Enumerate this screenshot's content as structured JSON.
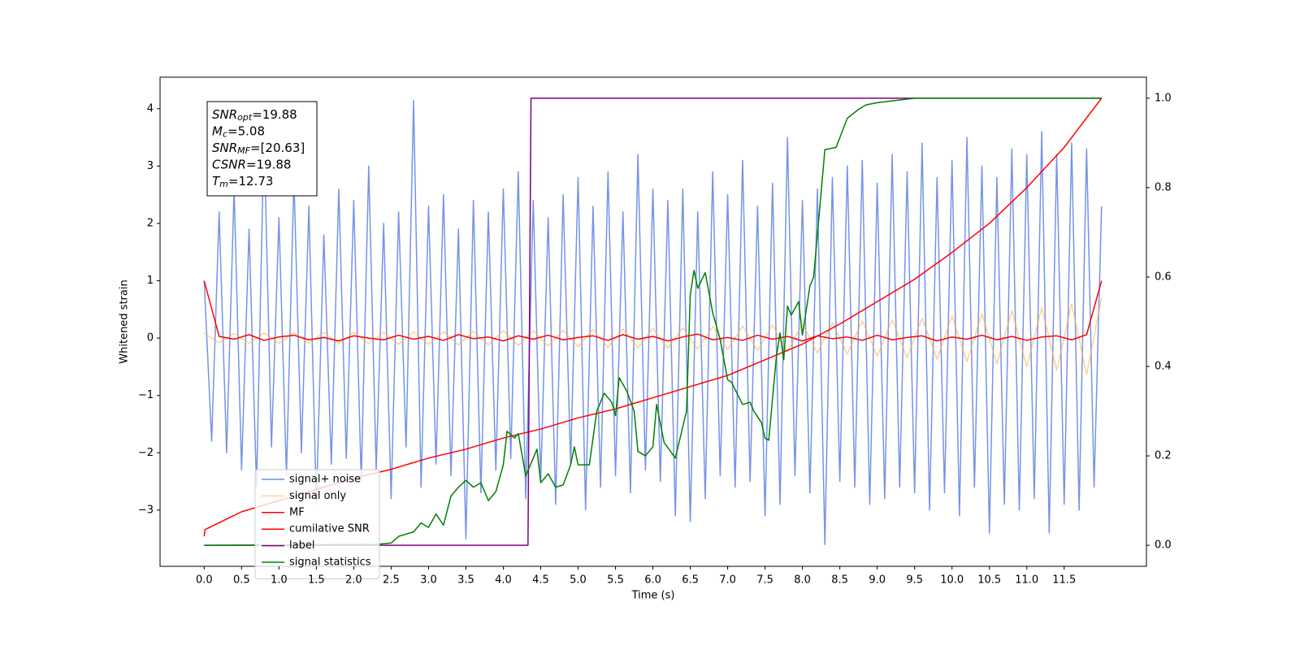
{
  "chart_data": {
    "type": "line",
    "xlabel": "Time (s)",
    "ylabel": "Whitened strain",
    "xlim": [
      -0.59,
      12.6
    ],
    "ylim": [
      -3.98,
      4.55
    ],
    "y2lim": [
      -0.047,
      1.047
    ],
    "xticks": [
      {
        "value": 0,
        "label": "0.0"
      },
      {
        "value": 0.5,
        "label": "0.5"
      },
      {
        "value": 1,
        "label": "1.0"
      },
      {
        "value": 1.5,
        "label": "1.5"
      },
      {
        "value": 2,
        "label": "2.0"
      },
      {
        "value": 2.5,
        "label": "2.5"
      },
      {
        "value": 3,
        "label": "3.0"
      },
      {
        "value": 3.5,
        "label": "3.5"
      },
      {
        "value": 4,
        "label": "4.0"
      },
      {
        "value": 4.5,
        "label": "4.5"
      },
      {
        "value": 5,
        "label": "5.0"
      },
      {
        "value": 5.5,
        "label": "5.5"
      },
      {
        "value": 6,
        "label": "6.0"
      },
      {
        "value": 6.5,
        "label": "6.5"
      },
      {
        "value": 7,
        "label": "7.0"
      },
      {
        "value": 7.5,
        "label": "7.5"
      },
      {
        "value": 8,
        "label": "8.0"
      },
      {
        "value": 8.5,
        "label": "8.5"
      },
      {
        "value": 9,
        "label": "9.0"
      },
      {
        "value": 9.5,
        "label": "9.5"
      },
      {
        "value": 10,
        "label": "10.0"
      },
      {
        "value": 10.5,
        "label": "10.5"
      },
      {
        "value": 11,
        "label": "11.0"
      },
      {
        "value": 11.5,
        "label": "11.5"
      }
    ],
    "yticks": [
      {
        "value": -3,
        "label": "−3"
      },
      {
        "value": -2,
        "label": "−2"
      },
      {
        "value": -1,
        "label": "−1"
      },
      0,
      1,
      2,
      3,
      4
    ],
    "y2ticks": [
      {
        "value": 0,
        "label": "0.0"
      },
      {
        "value": 0.2,
        "label": "0.2"
      },
      {
        "value": 0.4,
        "label": "0.4"
      },
      {
        "value": 0.6,
        "label": "0.6"
      },
      {
        "value": 0.8,
        "label": "0.8"
      },
      {
        "value": 1,
        "label": "1.0"
      }
    ],
    "annotations": [
      {
        "symbol": "SNR",
        "subscript": "opt",
        "text": "=19.88"
      },
      {
        "symbol": "M",
        "subscript": "c",
        "text": "=5.08"
      },
      {
        "symbol": "SNR",
        "subscript": "MF",
        "text": "=[20.63]"
      },
      {
        "symbol": "CSNR",
        "subscript": "",
        "text": "=19.88"
      },
      {
        "symbol": "T",
        "subscript": "m",
        "text": "=12.73"
      }
    ],
    "legend": "lower left",
    "series": [
      {
        "name": "signal+ noise",
        "color": "#6f8de6",
        "x": [
          0,
          0.1,
          0.2,
          0.3,
          0.4,
          0.5,
          0.6,
          0.7,
          0.8,
          0.9,
          1,
          1.1,
          1.2,
          1.3,
          1.4,
          1.5,
          1.6,
          1.7,
          1.8,
          1.9,
          2,
          2.1,
          2.2,
          2.3,
          2.4,
          2.5,
          2.6,
          2.7,
          2.8,
          2.9,
          3,
          3.1,
          3.2,
          3.3,
          3.4,
          3.5,
          3.6,
          3.7,
          3.8,
          3.9,
          4,
          4.1,
          4.2,
          4.3,
          4.4,
          4.5,
          4.6,
          4.7,
          4.8,
          4.9,
          5,
          5.1,
          5.2,
          5.3,
          5.4,
          5.5,
          5.6,
          5.7,
          5.8,
          5.9,
          6,
          6.1,
          6.2,
          6.3,
          6.4,
          6.5,
          6.6,
          6.7,
          6.8,
          6.9,
          7,
          7.1,
          7.2,
          7.3,
          7.4,
          7.5,
          7.6,
          7.7,
          7.8,
          7.9,
          8,
          8.1,
          8.2,
          8.3,
          8.4,
          8.5,
          8.6,
          8.7,
          8.8,
          8.9,
          9,
          9.1,
          9.2,
          9.3,
          9.4,
          9.5,
          9.6,
          9.7,
          9.8,
          9.9,
          10,
          10.1,
          10.2,
          10.3,
          10.4,
          10.5,
          10.6,
          10.7,
          10.8,
          10.9,
          11,
          11.1,
          11.2,
          11.3,
          11.4,
          11.5,
          11.6,
          11.7,
          11.8,
          11.9,
          12
        ],
        "values": [
          1.0,
          -1.8,
          2.2,
          -2.0,
          2.6,
          -2.3,
          1.9,
          -2.6,
          3.6,
          -1.9,
          2.1,
          -2.4,
          2.8,
          -2.0,
          2.3,
          -2.9,
          1.8,
          -2.2,
          2.6,
          -2.1,
          2.4,
          -2.5,
          3.0,
          -2.3,
          2.0,
          -2.8,
          2.2,
          -1.9,
          4.15,
          -2.6,
          2.3,
          -2.2,
          2.5,
          -2.4,
          1.9,
          -3.5,
          2.4,
          -2.7,
          2.2,
          -2.3,
          2.6,
          -2.1,
          2.9,
          -2.8,
          2.4,
          -2.5,
          2.1,
          -2.9,
          2.5,
          -2.2,
          2.8,
          -3.0,
          2.3,
          -2.6,
          2.9,
          -2.4,
          2.2,
          -2.7,
          3.2,
          -2.3,
          2.6,
          -2.5,
          2.4,
          -3.1,
          2.6,
          -3.2,
          2.2,
          -2.8,
          2.9,
          -2.4,
          2.5,
          -2.6,
          3.1,
          -2.5,
          2.3,
          -3.1,
          2.7,
          -2.9,
          3.5,
          -2.4,
          2.4,
          -2.7,
          2.6,
          -3.6,
          2.8,
          -2.5,
          3.0,
          -2.6,
          3.1,
          -2.9,
          2.7,
          -2.8,
          3.2,
          -2.6,
          2.9,
          -2.7,
          3.4,
          -3.0,
          2.8,
          -2.7,
          3.1,
          -3.1,
          3.5,
          -2.6,
          3.0,
          -3.4,
          2.8,
          -2.9,
          3.3,
          -3.0,
          3.2,
          -2.8,
          3.6,
          -3.4,
          3.2,
          -2.9,
          3.4,
          -3.0,
          3.3,
          -2.6,
          2.3
        ]
      },
      {
        "name": "signal only",
        "color": "#ffb347",
        "x": [
          0,
          0.2,
          0.4,
          0.6,
          0.8,
          1,
          1.2,
          1.4,
          1.6,
          1.8,
          2,
          2.2,
          2.4,
          2.6,
          2.8,
          3,
          3.2,
          3.4,
          3.6,
          3.8,
          4,
          4.2,
          4.4,
          4.6,
          4.8,
          5,
          5.2,
          5.4,
          5.6,
          5.8,
          6,
          6.2,
          6.4,
          6.6,
          6.8,
          7,
          7.2,
          7.4,
          7.6,
          7.8,
          8,
          8.2,
          8.4,
          8.6,
          8.8,
          9,
          9.2,
          9.4,
          9.6,
          9.8,
          10,
          10.2,
          10.4,
          10.6,
          10.8,
          11,
          11.2,
          11.4,
          11.6,
          11.8,
          12
        ],
        "values": [
          0.08,
          -0.08,
          0.08,
          -0.09,
          0.09,
          -0.09,
          0.09,
          -0.09,
          0.1,
          -0.1,
          0.1,
          -0.1,
          0.1,
          -0.11,
          0.11,
          -0.11,
          0.11,
          -0.12,
          0.12,
          -0.12,
          0.13,
          -0.13,
          0.13,
          -0.14,
          0.14,
          -0.15,
          0.15,
          -0.16,
          0.16,
          -0.17,
          0.17,
          -0.18,
          0.18,
          -0.19,
          0.2,
          -0.2,
          0.21,
          -0.22,
          0.23,
          -0.24,
          0.25,
          -0.26,
          0.27,
          -0.28,
          0.3,
          -0.31,
          0.32,
          -0.34,
          0.35,
          -0.37,
          0.39,
          -0.41,
          0.43,
          -0.45,
          0.48,
          -0.5,
          0.53,
          -0.56,
          0.6,
          -0.64,
          0.7
        ]
      },
      {
        "name": "MF",
        "color": "#ff0000",
        "x": [
          0,
          0.2,
          0.4,
          0.6,
          0.8,
          1,
          1.2,
          1.4,
          1.6,
          1.8,
          2,
          2.2,
          2.4,
          2.6,
          2.8,
          3,
          3.2,
          3.4,
          3.6,
          3.8,
          4,
          4.2,
          4.4,
          4.6,
          4.8,
          5,
          5.2,
          5.4,
          5.6,
          5.8,
          6,
          6.2,
          6.4,
          6.6,
          6.8,
          7,
          7.2,
          7.4,
          7.6,
          7.8,
          8,
          8.2,
          8.4,
          8.6,
          8.8,
          9,
          9.2,
          9.4,
          9.6,
          9.8,
          10,
          10.2,
          10.4,
          10.6,
          10.8,
          11,
          11.2,
          11.4,
          11.6,
          11.8,
          12
        ],
        "values": [
          1.0,
          0.03,
          -0.02,
          0.06,
          -0.04,
          0.02,
          0.05,
          -0.03,
          0.01,
          -0.05,
          0.04,
          0,
          -0.03,
          0.05,
          -0.02,
          0.03,
          -0.04,
          0.06,
          -0.01,
          0.02,
          -0.05,
          0.04,
          -0.02,
          0.05,
          -0.03,
          0.01,
          0.04,
          -0.04,
          0.06,
          -0.02,
          0.03,
          -0.05,
          0.02,
          0.07,
          -0.03,
          0.01,
          -0.04,
          0.05,
          -0.02,
          0.03,
          -0.05,
          0.04,
          -0.01,
          0.02,
          -0.04,
          0.05,
          -0.03,
          0.01,
          0.04,
          -0.05,
          0.02,
          -0.02,
          0.05,
          -0.03,
          0.03,
          -0.04,
          0.02,
          0.04,
          -0.03,
          0.06,
          1.0
        ]
      },
      {
        "name": "cumilative SNR",
        "color": "#ff0000",
        "axis": "y2",
        "x": [
          0,
          0.01,
          0.5,
          1,
          1.5,
          2,
          2.5,
          3,
          3.5,
          4,
          4.5,
          5,
          5.5,
          6,
          6.5,
          7,
          7.5,
          8,
          8.5,
          9,
          9.5,
          10,
          10.5,
          11,
          11.5,
          12
        ],
        "values": [
          0.02,
          0.035,
          0.075,
          0.1,
          0.125,
          0.15,
          0.17,
          0.195,
          0.215,
          0.24,
          0.26,
          0.285,
          0.305,
          0.33,
          0.355,
          0.38,
          0.415,
          0.45,
          0.495,
          0.545,
          0.595,
          0.655,
          0.72,
          0.8,
          0.89,
          1.0
        ]
      },
      {
        "name": "label",
        "color": "#800080",
        "axis": "y2",
        "x": [
          0,
          4.33,
          4.37,
          12
        ],
        "values": [
          0,
          0,
          1,
          1
        ]
      },
      {
        "name": "signal statistics",
        "color": "#008000",
        "axis": "y2",
        "x": [
          0,
          2.3,
          2.5,
          2.6,
          2.8,
          2.9,
          3.0,
          3.1,
          3.2,
          3.3,
          3.4,
          3.5,
          3.6,
          3.7,
          3.8,
          3.9,
          4.0,
          4.05,
          4.15,
          4.2,
          4.3,
          4.45,
          4.5,
          4.6,
          4.7,
          4.8,
          4.9,
          4.95,
          5.0,
          5.15,
          5.25,
          5.35,
          5.45,
          5.5,
          5.55,
          5.65,
          5.75,
          5.8,
          5.9,
          6.0,
          6.05,
          6.15,
          6.3,
          6.45,
          6.5,
          6.55,
          6.6,
          6.7,
          6.8,
          6.9,
          7.0,
          7.05,
          7.2,
          7.3,
          7.35,
          7.45,
          7.5,
          7.55,
          7.65,
          7.7,
          7.75,
          7.8,
          7.85,
          7.95,
          8.0,
          8.1,
          8.15,
          8.3,
          8.45,
          8.6,
          8.75,
          8.85,
          9.0,
          9.25,
          9.5,
          12
        ],
        "values": [
          0,
          0.002,
          0.005,
          0.02,
          0.03,
          0.05,
          0.04,
          0.07,
          0.045,
          0.11,
          0.13,
          0.145,
          0.13,
          0.14,
          0.1,
          0.12,
          0.18,
          0.255,
          0.24,
          0.25,
          0.155,
          0.215,
          0.14,
          0.16,
          0.13,
          0.135,
          0.18,
          0.22,
          0.18,
          0.18,
          0.3,
          0.34,
          0.32,
          0.29,
          0.375,
          0.345,
          0.3,
          0.21,
          0.2,
          0.22,
          0.315,
          0.23,
          0.195,
          0.3,
          0.56,
          0.615,
          0.575,
          0.61,
          0.52,
          0.46,
          0.37,
          0.365,
          0.315,
          0.32,
          0.3,
          0.275,
          0.24,
          0.235,
          0.42,
          0.475,
          0.415,
          0.535,
          0.515,
          0.545,
          0.47,
          0.58,
          0.6,
          0.885,
          0.89,
          0.955,
          0.975,
          0.985,
          0.99,
          0.995,
          1.0,
          1.0
        ]
      }
    ]
  }
}
